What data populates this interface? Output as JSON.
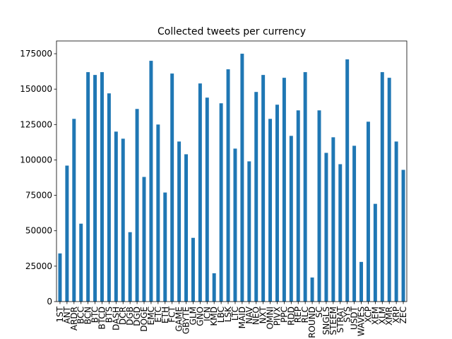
{
  "chart_data": {
    "type": "bar",
    "title": "Collected tweets per currency",
    "categories": [
      "1ST",
      "ANT",
      "ARDR",
      "BCC",
      "BCN",
      "BTC",
      "BTCD",
      "BTS",
      "DASH",
      "DCR",
      "DGB",
      "DGD",
      "DOGE",
      "EMC",
      "ETC",
      "ETH",
      "FCT",
      "GAME",
      "GBYTE",
      "GLM",
      "GNO",
      "ICN",
      "KMD",
      "LBC",
      "LSK",
      "LTC",
      "MAID",
      "NAV",
      "NEO",
      "NXT",
      "OMNI",
      "PIVX",
      "PPC",
      "RDD",
      "REP",
      "RLC",
      "ROUND",
      "SC",
      "SNGLS",
      "STEEM",
      "STRAT",
      "SYS",
      "USDT",
      "WAVES",
      "XCP",
      "XEM",
      "XLM",
      "XMR",
      "XRP",
      "ZEC"
    ],
    "values": [
      34000,
      96000,
      129000,
      55000,
      162000,
      160000,
      162000,
      147000,
      120000,
      115000,
      49000,
      136000,
      88000,
      170000,
      125000,
      77000,
      161000,
      113000,
      104000,
      45000,
      154000,
      144000,
      20000,
      140000,
      164000,
      108000,
      175000,
      99000,
      148000,
      160000,
      129000,
      139000,
      158000,
      117000,
      135000,
      162000,
      17000,
      135000,
      105000,
      116000,
      97000,
      171000,
      110000,
      28000,
      127000,
      69000,
      162000,
      158000,
      113000,
      93000
    ],
    "color": "#1f77b4",
    "ylim": [
      0,
      184000
    ],
    "yticks": [
      0,
      25000,
      50000,
      75000,
      100000,
      125000,
      150000,
      175000
    ],
    "grid": false
  }
}
